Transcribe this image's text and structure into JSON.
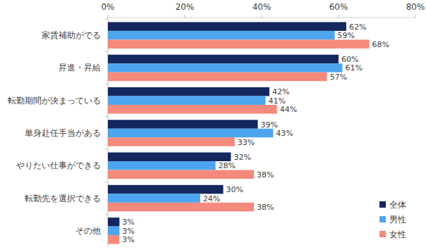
{
  "chart_data": {
    "type": "bar",
    "orientation": "horizontal",
    "categories": [
      "家賃補助がでる",
      "昇進・昇給",
      "転勤期間が決まっている",
      "単身赴任手当がある",
      "やりたい仕事ができる",
      "転勤先を選択できる",
      "その他"
    ],
    "series": [
      {
        "name": "全体",
        "color": "#14275e",
        "values": [
          62,
          60,
          42,
          39,
          32,
          30,
          3
        ],
        "value_labels": [
          "62%",
          "60%",
          "42%",
          "39%",
          "32%",
          "30%",
          "3%"
        ]
      },
      {
        "name": "男性",
        "color": "#4ea5ef",
        "values": [
          59,
          61,
          41,
          43,
          28,
          24,
          3
        ],
        "value_labels": [
          "59%",
          "61%",
          "41%",
          "43%",
          "28%",
          "24%",
          "3%"
        ]
      },
      {
        "name": "女性",
        "color": "#f48a7c",
        "values": [
          68,
          57,
          44,
          33,
          38,
          38,
          3
        ],
        "value_labels": [
          "68%",
          "57%",
          "44%",
          "33%",
          "38%",
          "38%",
          "3%"
        ]
      }
    ],
    "xlim": [
      0,
      80
    ],
    "xticks": [
      {
        "value": 0,
        "label": "0%"
      },
      {
        "value": 20,
        "label": "20%"
      },
      {
        "value": 40,
        "label": "40%"
      },
      {
        "value": 60,
        "label": "60%"
      },
      {
        "value": 80,
        "label": "80%"
      }
    ],
    "grid": false,
    "data_labels": true,
    "legend": "lower right"
  }
}
